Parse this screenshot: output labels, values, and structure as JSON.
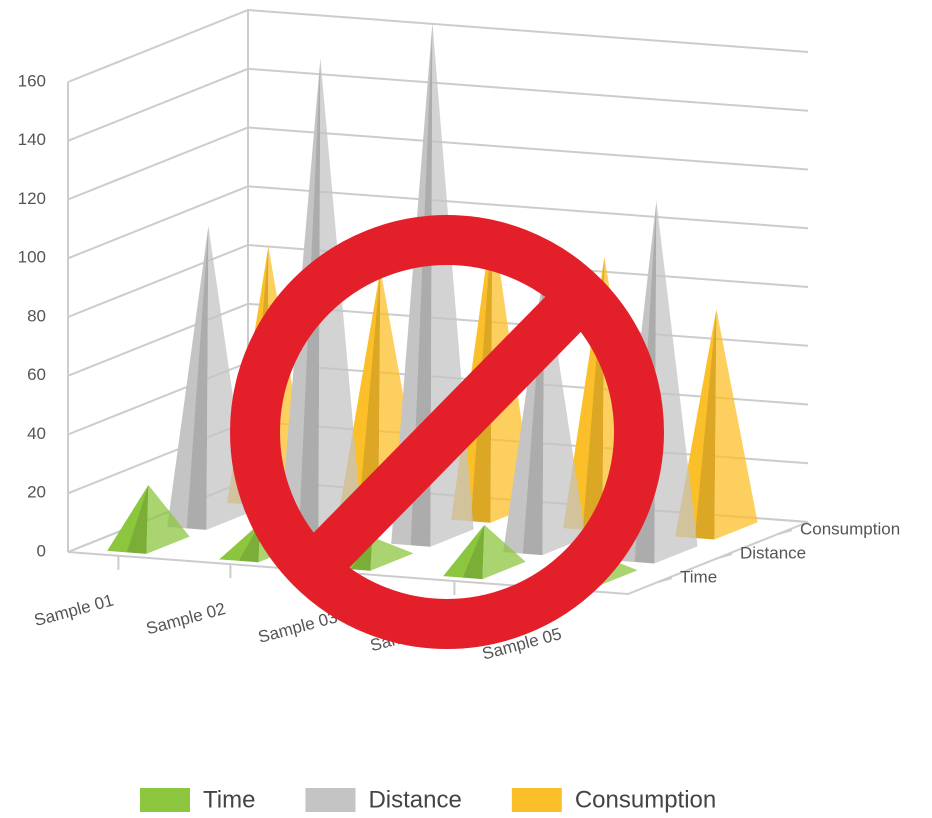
{
  "chart_data": {
    "type": "pyramid3d",
    "categories": [
      "Sample 01",
      "Sample 02",
      "Sample 03",
      "Sample 04",
      "Sample 05"
    ],
    "series": [
      {
        "name": "Time",
        "color": "#8cc63f",
        "values": [
          20,
          10,
          8,
          15,
          8
        ]
      },
      {
        "name": "Distance",
        "color": "#c4c4c4",
        "values": [
          100,
          160,
          175,
          95,
          120
        ]
      },
      {
        "name": "Consumption",
        "color": "#fbbf2a",
        "values": [
          85,
          80,
          100,
          90,
          75
        ]
      }
    ],
    "ylim": [
      0,
      160
    ],
    "yticks": [
      0,
      20,
      40,
      60,
      80,
      100,
      120,
      140,
      160
    ],
    "grid": true,
    "legend": "bottom"
  }
}
